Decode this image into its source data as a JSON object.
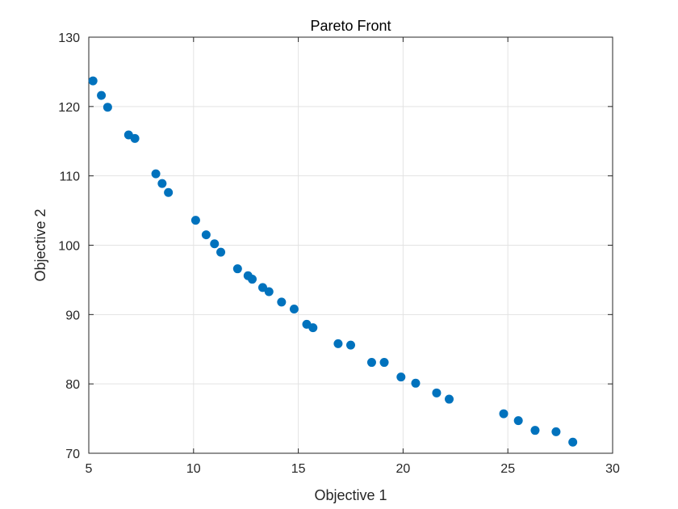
{
  "chart_data": {
    "type": "scatter",
    "title": "Pareto Front",
    "xlabel": "Objective 1",
    "ylabel": "Objective 2",
    "xlim": [
      5,
      30
    ],
    "ylim": [
      70,
      130
    ],
    "xticks": [
      5,
      10,
      15,
      20,
      25,
      30
    ],
    "yticks": [
      70,
      80,
      90,
      100,
      110,
      120,
      130
    ],
    "grid": true,
    "legend": "none",
    "marker_color": "#0072BD",
    "points": [
      {
        "x": 5.2,
        "y": 123.7
      },
      {
        "x": 5.6,
        "y": 121.6
      },
      {
        "x": 5.9,
        "y": 119.9
      },
      {
        "x": 6.9,
        "y": 115.9
      },
      {
        "x": 7.2,
        "y": 115.4
      },
      {
        "x": 8.2,
        "y": 110.3
      },
      {
        "x": 8.5,
        "y": 108.9
      },
      {
        "x": 8.8,
        "y": 107.6
      },
      {
        "x": 10.1,
        "y": 103.6
      },
      {
        "x": 10.6,
        "y": 101.5
      },
      {
        "x": 11.0,
        "y": 100.2
      },
      {
        "x": 11.3,
        "y": 99.0
      },
      {
        "x": 12.1,
        "y": 96.6
      },
      {
        "x": 12.6,
        "y": 95.6
      },
      {
        "x": 12.8,
        "y": 95.1
      },
      {
        "x": 13.3,
        "y": 93.9
      },
      {
        "x": 13.6,
        "y": 93.3
      },
      {
        "x": 14.2,
        "y": 91.8
      },
      {
        "x": 14.8,
        "y": 90.8
      },
      {
        "x": 15.4,
        "y": 88.6
      },
      {
        "x": 15.7,
        "y": 88.1
      },
      {
        "x": 16.9,
        "y": 85.8
      },
      {
        "x": 17.5,
        "y": 85.6
      },
      {
        "x": 18.5,
        "y": 83.1
      },
      {
        "x": 19.1,
        "y": 83.1
      },
      {
        "x": 19.9,
        "y": 81.0
      },
      {
        "x": 20.6,
        "y": 80.1
      },
      {
        "x": 21.6,
        "y": 78.7
      },
      {
        "x": 22.2,
        "y": 77.8
      },
      {
        "x": 24.8,
        "y": 75.7
      },
      {
        "x": 25.5,
        "y": 74.7
      },
      {
        "x": 26.3,
        "y": 73.3
      },
      {
        "x": 27.3,
        "y": 73.1
      },
      {
        "x": 28.1,
        "y": 71.6
      }
    ]
  }
}
